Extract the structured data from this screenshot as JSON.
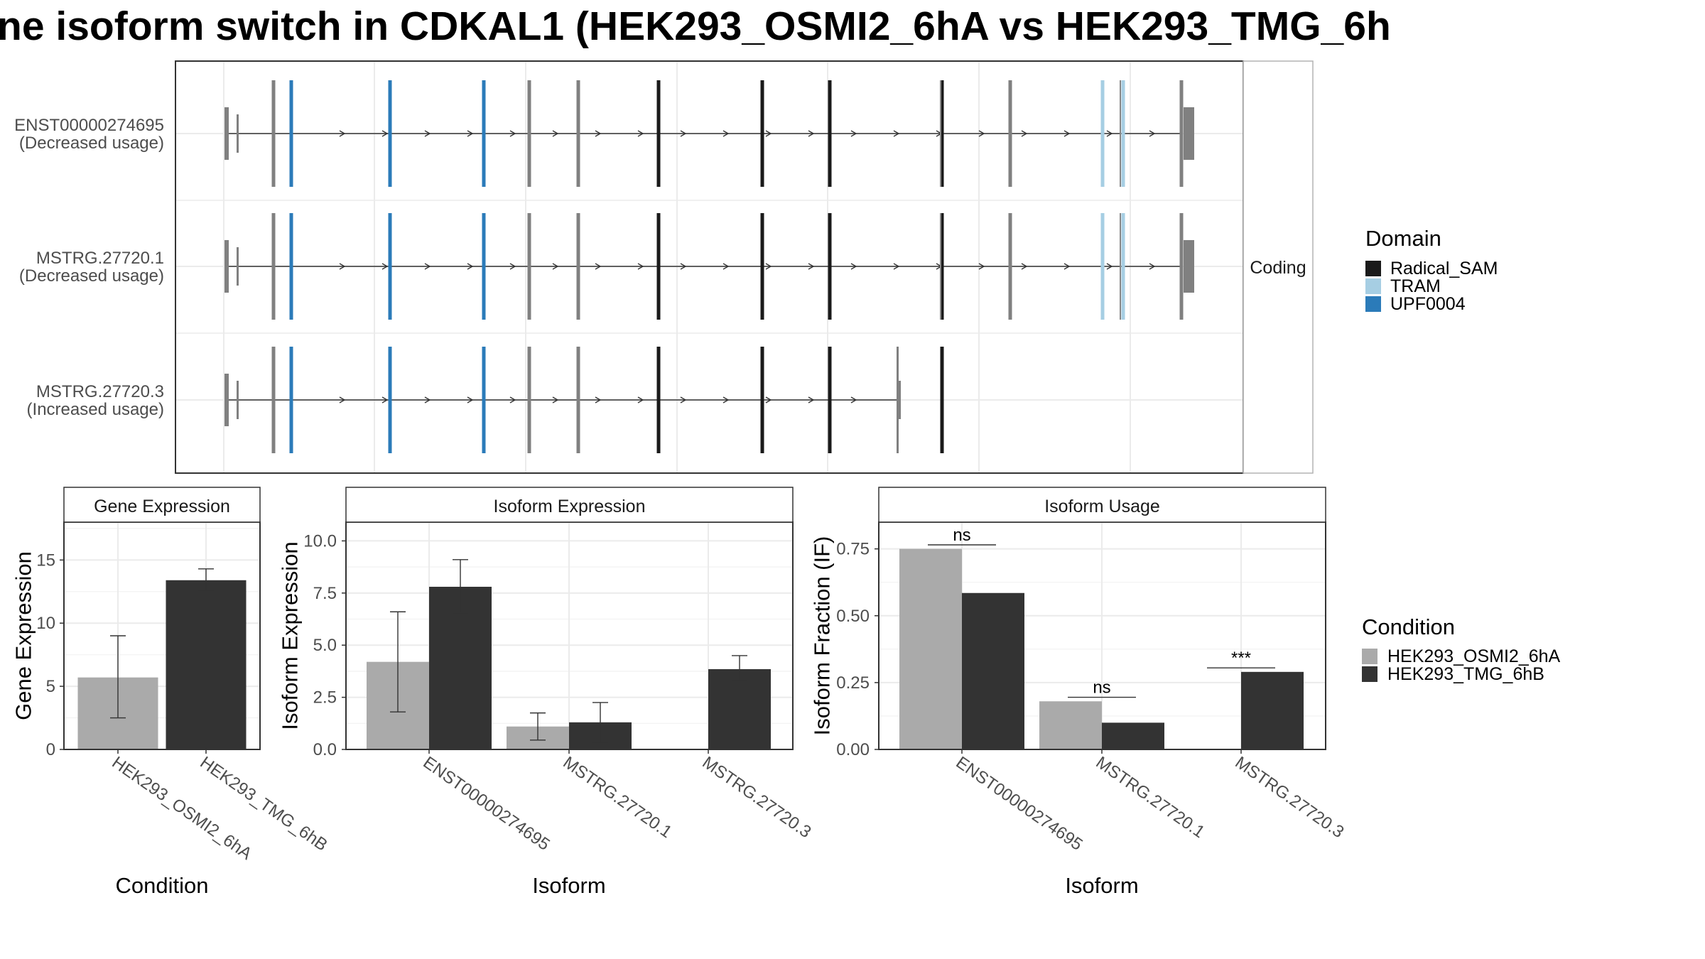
{
  "title": "ne isoform switch in CDKAL1 (HEK293_OSMI2_6hA vs HEK293_TMG_6h",
  "colors": {
    "cond_a": "#aaaaaa",
    "cond_b": "#333333",
    "radical_sam": "#1a1a1a",
    "tram": "#a6cee3",
    "upf0004": "#2b7bb9",
    "noncoding": "#808080"
  },
  "structure": {
    "strip_label": "Coding",
    "isoforms": [
      {
        "id": "ENST00000274695",
        "status": "(Decreased usage)",
        "truncated": false
      },
      {
        "id": "MSTRG.27720.1",
        "status": "(Decreased usage)",
        "truncated": false
      },
      {
        "id": "MSTRG.27720.3",
        "status": "(Increased usage)",
        "truncated": true
      }
    ]
  },
  "domain_legend": {
    "title": "Domain",
    "items": [
      {
        "label": "Radical_SAM",
        "color": "#1a1a1a"
      },
      {
        "label": "TRAM",
        "color": "#a6cee3"
      },
      {
        "label": "UPF0004",
        "color": "#2b7bb9"
      }
    ]
  },
  "condition_legend": {
    "title": "Condition",
    "items": [
      {
        "label": "HEK293_OSMI2_6hA",
        "color": "#aaaaaa"
      },
      {
        "label": "HEK293_TMG_6hB",
        "color": "#333333"
      }
    ]
  },
  "chart_data": [
    {
      "type": "bar",
      "strip": "Gene Expression",
      "xlabel": "Condition",
      "ylabel": "Gene Expression",
      "ylim": [
        0,
        18
      ],
      "yticks": [
        0,
        5,
        10,
        15
      ],
      "categories": [
        "HEK293_OSMI2_6hA",
        "HEK293_TMG_6hB"
      ],
      "values": [
        5.7,
        13.4
      ],
      "errors": [
        [
          2.5,
          9.0
        ],
        [
          12.6,
          14.3
        ]
      ]
    },
    {
      "type": "bar",
      "strip": "Isoform Expression",
      "xlabel": "Isoform",
      "ylabel": "Isoform Expression",
      "ylim": [
        0,
        10.9
      ],
      "yticks": [
        "0.0",
        "2.5",
        "5.0",
        "7.5",
        "10.0"
      ],
      "categories": [
        "ENST00000274695",
        "MSTRG.27720.1",
        "MSTRG.27720.3"
      ],
      "series": [
        {
          "values": [
            4.2,
            1.1,
            0.0
          ],
          "errors": [
            [
              1.8,
              6.6
            ],
            [
              0.45,
              1.75
            ],
            [
              0.0,
              0.0
            ]
          ]
        },
        {
          "values": [
            7.8,
            1.3,
            3.85
          ],
          "errors": [
            [
              6.55,
              9.1
            ],
            [
              0.35,
              2.25
            ],
            [
              3.3,
              4.5
            ]
          ]
        }
      ]
    },
    {
      "type": "bar",
      "strip": "Isoform Usage",
      "xlabel": "Isoform",
      "ylabel": "Isoform Fraction (IF)",
      "ylim": [
        0,
        0.85
      ],
      "yticks": [
        "0.00",
        "0.25",
        "0.50",
        "0.75"
      ],
      "categories": [
        "ENST00000274695",
        "MSTRG.27720.1",
        "MSTRG.27720.3"
      ],
      "series": [
        {
          "values": [
            0.75,
            0.18,
            0.0
          ]
        },
        {
          "values": [
            0.585,
            0.1,
            0.29
          ]
        }
      ],
      "significance": [
        "ns",
        "ns",
        "***"
      ]
    }
  ]
}
